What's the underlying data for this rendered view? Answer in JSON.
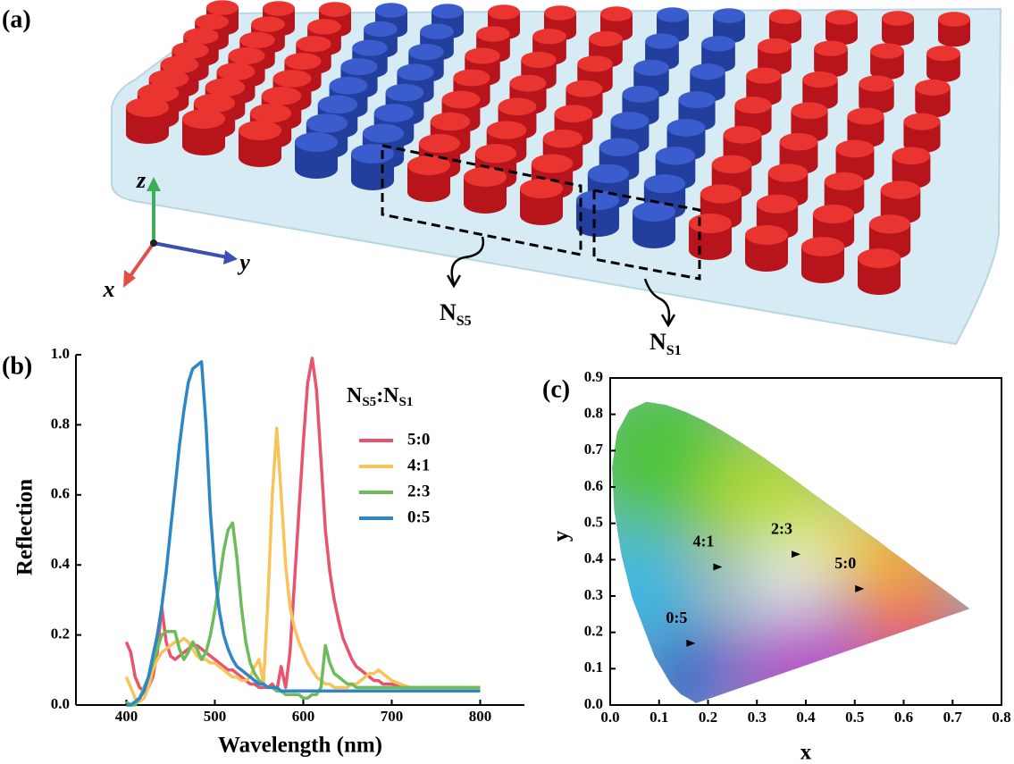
{
  "panel_labels": [
    "(a)",
    "(b)",
    "(c)"
  ],
  "illustration": {
    "axis_labels": [
      "z",
      "x",
      "y"
    ],
    "group_labels": [
      [
        "N",
        "S5"
      ],
      [
        "N",
        "S1"
      ]
    ]
  },
  "chart_data": [
    {
      "type": "line",
      "xlabel": "Wavelength (nm)",
      "ylabel": "Reflection",
      "legend_title": [
        "N",
        "S5",
        ":N",
        "S1"
      ],
      "xlim": [
        343,
        850
      ],
      "xticks": [
        400,
        500,
        600,
        700,
        800
      ],
      "ylim": [
        0,
        1
      ],
      "yticks": [
        {
          "value": 0,
          "label": "0.0"
        },
        0.2,
        0.4,
        0.6,
        0.8,
        {
          "value": 1,
          "label": "1.0"
        }
      ],
      "x": [
        400,
        405,
        410,
        415,
        420,
        425,
        430,
        435,
        440,
        445,
        450,
        455,
        460,
        465,
        470,
        475,
        480,
        485,
        490,
        495,
        500,
        505,
        510,
        515,
        520,
        525,
        530,
        535,
        540,
        545,
        550,
        555,
        560,
        565,
        570,
        575,
        580,
        585,
        590,
        595,
        600,
        605,
        610,
        615,
        620,
        625,
        630,
        635,
        640,
        645,
        650,
        655,
        660,
        665,
        670,
        675,
        680,
        685,
        690,
        695,
        700,
        710,
        720,
        730,
        740,
        750,
        760,
        770,
        780,
        790,
        800
      ],
      "series": [
        {
          "name": "5:0",
          "color": "#e8536e",
          "values": [
            0.18,
            0.15,
            0.08,
            0.05,
            0.04,
            0.05,
            0.08,
            0.15,
            0.28,
            0.18,
            0.14,
            0.13,
            0.14,
            0.15,
            0.16,
            0.17,
            0.17,
            0.16,
            0.15,
            0.14,
            0.13,
            0.12,
            0.11,
            0.1,
            0.1,
            0.09,
            0.08,
            0.07,
            0.06,
            0.06,
            0.05,
            0.05,
            0.05,
            0.06,
            0.04,
            0.11,
            0.05,
            0.15,
            0.35,
            0.55,
            0.75,
            0.92,
            0.99,
            0.9,
            0.7,
            0.5,
            0.38,
            0.3,
            0.24,
            0.19,
            0.16,
            0.13,
            0.11,
            0.1,
            0.09,
            0.08,
            0.07,
            0.07,
            0.06,
            0.06,
            0.06,
            0.05,
            0.05,
            0.05,
            0.05,
            0.05,
            0.05,
            0.05,
            0.05,
            0.05,
            0.05
          ]
        },
        {
          "name": "4:1",
          "color": "#f7c35a",
          "values": [
            0.08,
            0.05,
            0.02,
            0.01,
            0.02,
            0.05,
            0.1,
            0.13,
            0.15,
            0.16,
            0.17,
            0.18,
            0.18,
            0.19,
            0.18,
            0.16,
            0.14,
            0.13,
            0.13,
            0.12,
            0.12,
            0.11,
            0.1,
            0.09,
            0.08,
            0.08,
            0.07,
            0.07,
            0.08,
            0.11,
            0.13,
            0.06,
            0.3,
            0.6,
            0.79,
            0.6,
            0.4,
            0.28,
            0.22,
            0.18,
            0.15,
            0.12,
            0.1,
            0.08,
            0.07,
            0.06,
            0.06,
            0.05,
            0.05,
            0.05,
            0.05,
            0.06,
            0.06,
            0.07,
            0.08,
            0.09,
            0.09,
            0.1,
            0.09,
            0.08,
            0.07,
            0.06,
            0.05,
            0.05,
            0.05,
            0.05,
            0.05,
            0.05,
            0.05,
            0.05,
            0.05
          ]
        },
        {
          "name": "2:3",
          "color": "#6dbb5a",
          "values": [
            0.01,
            0,
            0,
            0.02,
            0.05,
            0.08,
            0.12,
            0.16,
            0.2,
            0.21,
            0.21,
            0.21,
            0.16,
            0.13,
            0.15,
            0.18,
            0.16,
            0.13,
            0.15,
            0.2,
            0.27,
            0.35,
            0.44,
            0.5,
            0.52,
            0.42,
            0.28,
            0.18,
            0.12,
            0.09,
            0.07,
            0.06,
            0.05,
            0.05,
            0.04,
            0.04,
            0.03,
            0.03,
            0.03,
            0.03,
            0.02,
            0.02,
            0.03,
            0.03,
            0.05,
            0.17,
            0.12,
            0.09,
            0.08,
            0.07,
            0.06,
            0.06,
            0.05,
            0.05,
            0.05,
            0.05,
            0.05,
            0.05,
            0.05,
            0.05,
            0.05,
            0.05,
            0.05,
            0.05,
            0.05,
            0.05,
            0.05,
            0.05,
            0.05,
            0.05,
            0.05
          ]
        },
        {
          "name": "0:5",
          "color": "#2f86c6",
          "values": [
            0,
            0,
            0.01,
            0.02,
            0.04,
            0.08,
            0.14,
            0.2,
            0.28,
            0.38,
            0.5,
            0.62,
            0.74,
            0.84,
            0.92,
            0.96,
            0.97,
            0.98,
            0.8,
            0.55,
            0.38,
            0.27,
            0.2,
            0.16,
            0.13,
            0.11,
            0.1,
            0.09,
            0.08,
            0.07,
            0.06,
            0.06,
            0.05,
            0.05,
            0.05,
            0.04,
            0.04,
            0.04,
            0.04,
            0.04,
            0.04,
            0.04,
            0.04,
            0.04,
            0.04,
            0.04,
            0.04,
            0.04,
            0.04,
            0.04,
            0.04,
            0.04,
            0.04,
            0.04,
            0.04,
            0.04,
            0.04,
            0.04,
            0.04,
            0.04,
            0.04,
            0.04,
            0.04,
            0.04,
            0.04,
            0.04,
            0.04,
            0.04,
            0.04,
            0.04,
            0.04
          ]
        }
      ]
    },
    {
      "type": "scatter",
      "xlabel": "x",
      "ylabel": "y",
      "xlim": [
        0,
        0.8
      ],
      "xticks": [
        {
          "value": 0,
          "label": "0.0"
        },
        0.1,
        0.2,
        0.3,
        0.4,
        0.5,
        0.6,
        0.7,
        0.8
      ],
      "ylim": [
        0,
        0.9
      ],
      "yticks": [
        {
          "value": 0,
          "label": "0.0"
        },
        0.1,
        0.2,
        0.3,
        0.4,
        0.5,
        0.6,
        0.7,
        0.8,
        0.9
      ],
      "point_labels": [
        "4:1",
        "2:3",
        "5:0",
        "0:5"
      ],
      "x": [
        0.22,
        0.38,
        0.51,
        0.165
      ],
      "values": [
        0.38,
        0.415,
        0.32,
        0.17
      ],
      "color": "#000000"
    }
  ]
}
